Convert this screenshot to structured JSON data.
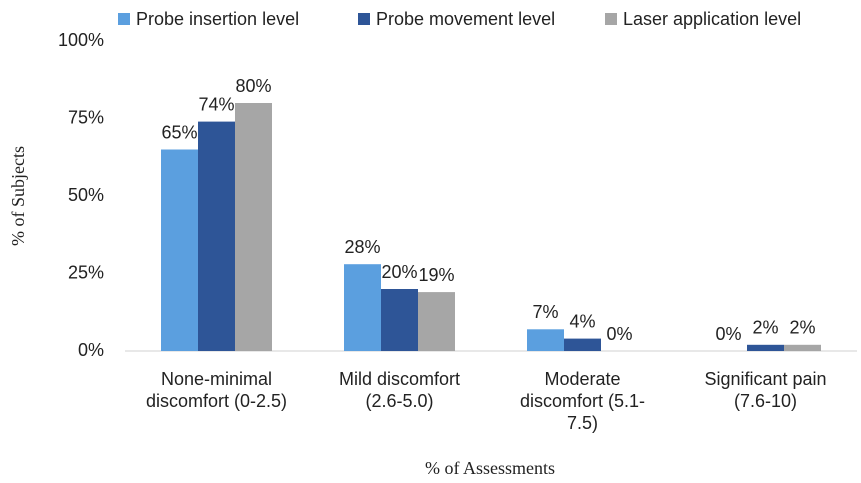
{
  "chart_data": {
    "type": "bar",
    "xlabel": "% of Assessments",
    "ylabel": "% of Subjects",
    "categories": [
      "None-minimal\ndiscomfort  (0-2.5)",
      "Mild discomfort\n(2.6-5.0)",
      "Moderate\ndiscomfort (5.1-\n7.5)",
      "Significant pain\n(7.6-10)"
    ],
    "series": [
      {
        "name": "Probe insertion level",
        "color": "#5b9fdf",
        "values": [
          65,
          28,
          7,
          0
        ],
        "value_labels": [
          "65%",
          "28%",
          "7%",
          "0%"
        ]
      },
      {
        "name": "Probe movement level",
        "color": "#2e5597",
        "values": [
          74,
          20,
          4,
          2
        ],
        "value_labels": [
          "74%",
          "20%",
          "4%",
          "2%"
        ]
      },
      {
        "name": "Laser application level",
        "color": "#a6a6a6",
        "values": [
          80,
          19,
          0,
          2
        ],
        "value_labels": [
          "80%",
          "19%",
          "0%",
          "2%"
        ]
      }
    ],
    "ylim": [
      0,
      100
    ],
    "yticks": [
      {
        "value": 0,
        "label": "0%"
      },
      {
        "value": 25,
        "label": "25%"
      },
      {
        "value": 50,
        "label": "50%"
      },
      {
        "value": 75,
        "label": "75%"
      },
      {
        "value": 100,
        "label": "100%"
      }
    ],
    "legend": "top"
  }
}
